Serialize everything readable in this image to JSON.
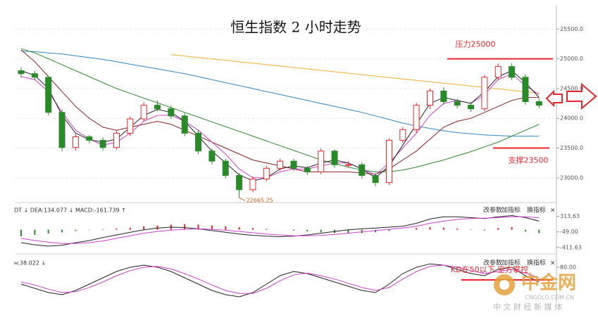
{
  "chart_data": [
    {
      "type": "candlestick",
      "title": "恒生指数 2 小时走势",
      "open": [
        24800,
        24750,
        24690,
        24100,
        23510,
        23690,
        23630,
        23510,
        23750,
        23990,
        24220,
        24160,
        24040,
        23750,
        23450,
        23280,
        23040,
        22800,
        22980,
        23160,
        23280,
        23160,
        23100,
        23450,
        23220,
        23220,
        23040,
        22920,
        23630,
        23810,
        24220,
        24460,
        24280,
        24220,
        24160,
        24690,
        24870,
        24690,
        24280
      ],
      "high": [
        24860,
        24800,
        24720,
        24150,
        23740,
        23720,
        23680,
        23790,
        24030,
        24270,
        24300,
        24210,
        24090,
        23800,
        23490,
        23320,
        23080,
        23020,
        23200,
        23320,
        23320,
        23200,
        23490,
        23480,
        23280,
        23260,
        23080,
        23660,
        23850,
        24260,
        24500,
        24520,
        24330,
        24280,
        24730,
        24920,
        24930,
        24740,
        24330
      ],
      "low": [
        24690,
        24640,
        24050,
        23450,
        23460,
        23580,
        23460,
        23470,
        23700,
        23950,
        24120,
        23990,
        23700,
        23400,
        23230,
        22990,
        22665.25,
        22760,
        22940,
        23120,
        23110,
        23050,
        23060,
        23170,
        23170,
        22990,
        22860,
        22880,
        23590,
        23760,
        24160,
        24230,
        24170,
        24110,
        24120,
        24640,
        24640,
        24230,
        24170
      ],
      "close": [
        24750,
        24690,
        24100,
        23510,
        23690,
        23630,
        23510,
        23750,
        23990,
        24220,
        24160,
        24040,
        23750,
        23450,
        23280,
        23040,
        22800,
        22980,
        23160,
        23280,
        23160,
        23100,
        23450,
        23220,
        23220,
        23040,
        22920,
        23630,
        23810,
        24220,
        24460,
        24280,
        24220,
        24160,
        24690,
        24870,
        24690,
        24280,
        24220
      ],
      "up_color": "#e8262b",
      "down_color": "#2a8a2a",
      "series": [
        {
          "color": "#f0b030",
          "values": [
            null,
            null,
            null,
            null,
            null,
            null,
            null,
            null,
            null,
            null,
            null,
            25070,
            25046,
            25022,
            24998,
            24974,
            24950,
            24926,
            24902,
            24878,
            24854,
            24830,
            24806,
            24782,
            24758,
            24734,
            24710,
            24686,
            24662,
            24638,
            24614,
            24590,
            24566,
            24542,
            24518,
            24494,
            24470,
            24446,
            24422
          ]
        },
        {
          "color": "#2f86c8",
          "values": [
            25130,
            25120,
            25100,
            25080,
            25050,
            25020,
            24990,
            24950,
            24910,
            24870,
            24830,
            24790,
            24750,
            24700,
            24650,
            24600,
            24550,
            24500,
            24450,
            24400,
            24350,
            24300,
            24250,
            24200,
            24150,
            24100,
            24040,
            23980,
            23920,
            23870,
            23830,
            23790,
            23760,
            23740,
            23720,
            23710,
            23700,
            23700,
            23700
          ]
        },
        {
          "color": "#2e8b2e",
          "values": [
            25170,
            25100,
            25000,
            24900,
            24800,
            24700,
            24600,
            24500,
            24420,
            24340,
            24260,
            24180,
            24100,
            24020,
            23940,
            23860,
            23780,
            23700,
            23620,
            23540,
            23460,
            23380,
            23300,
            23240,
            23180,
            23130,
            23100,
            23100,
            23130,
            23180,
            23240,
            23300,
            23370,
            23440,
            23520,
            23600,
            23700,
            23800,
            23900
          ]
        },
        {
          "color": "#8b2020",
          "values": [
            25150,
            24950,
            24700,
            24450,
            24200,
            24000,
            23850,
            23800,
            23850,
            23900,
            23950,
            23900,
            23800,
            23700,
            23600,
            23500,
            23400,
            23300,
            23250,
            23200,
            23150,
            23100,
            23100,
            23100,
            23100,
            23080,
            23060,
            23150,
            23300,
            23450,
            23650,
            23850,
            23950,
            24000,
            24100,
            24200,
            24300,
            24350,
            24350
          ]
        },
        {
          "color": "#d040d0",
          "values": [
            24700,
            24650,
            24450,
            24100,
            23800,
            23650,
            23550,
            23600,
            23750,
            23950,
            24050,
            24050,
            23950,
            23800,
            23600,
            23400,
            23150,
            23000,
            23000,
            23100,
            23150,
            23150,
            23200,
            23250,
            23250,
            23150,
            23050,
            23250,
            23500,
            23750,
            24050,
            24250,
            24300,
            24250,
            24400,
            24650,
            24750,
            24550,
            24400
          ]
        },
        {
          "color": "#222222",
          "values": [
            24800,
            24720,
            24500,
            24050,
            23750,
            23640,
            23600,
            23650,
            23850,
            24050,
            24150,
            24100,
            23950,
            23700,
            23450,
            23250,
            23050,
            22950,
            23000,
            23150,
            23200,
            23170,
            23250,
            23300,
            23250,
            23150,
            23000,
            23200,
            23550,
            23900,
            24250,
            24350,
            24300,
            24250,
            24450,
            24700,
            24800,
            24600,
            24350
          ]
        }
      ],
      "reference_lines": [
        {
          "label": "压力25000",
          "value": 25000,
          "color": "#e8262b"
        },
        {
          "label": "支撑23500",
          "value": 23500,
          "color": "#e8262b"
        }
      ],
      "ylim": [
        22620,
        25870
      ],
      "yticks": [
        {
          "value": 23000,
          "label": "23000.0"
        },
        {
          "value": 23500,
          "label": "23500.0"
        },
        {
          "value": 24000,
          "label": "24000.0"
        },
        {
          "value": 24500,
          "label": "24500.0"
        },
        {
          "value": 25000,
          "label": "25000.0"
        },
        {
          "value": 25500,
          "label": "25500.0"
        }
      ],
      "grid": true
    },
    {
      "type": "macd",
      "header": "DT ↓ DEA:134.077 ↓ MACD:-161.739 ↑",
      "buttons": [
        "改参数",
        "加指标",
        "换指标",
        "×"
      ],
      "histogram": [
        -150,
        -120,
        -90,
        -60,
        -30,
        -10,
        10,
        30,
        50,
        80,
        100,
        120,
        130,
        120,
        100,
        80,
        60,
        40,
        20,
        0,
        -20,
        -40,
        -60,
        -80,
        -90,
        -80,
        -60,
        -30,
        0,
        40,
        60,
        50,
        30,
        10,
        -20,
        40,
        60,
        -40,
        -80
      ],
      "up_color": "#e8262b",
      "down_color": "#2a8a2a",
      "series": [
        {
          "color": "#222222",
          "values": [
            -300,
            -350,
            -380,
            -360,
            -300,
            -250,
            -180,
            -120,
            -60,
            0,
            40,
            60,
            50,
            20,
            -20,
            -60,
            -100,
            -130,
            -150,
            -160,
            -150,
            -120,
            -80,
            -40,
            0,
            20,
            40,
            60,
            80,
            150,
            250,
            300,
            300,
            280,
            260,
            300,
            330,
            280,
            200
          ]
        },
        {
          "color": "#d040d0",
          "values": [
            -200,
            -250,
            -290,
            -320,
            -320,
            -300,
            -260,
            -200,
            -140,
            -80,
            -40,
            -10,
            10,
            20,
            10,
            -10,
            -40,
            -70,
            -100,
            -120,
            -140,
            -140,
            -130,
            -110,
            -80,
            -50,
            -20,
            10,
            40,
            80,
            150,
            200,
            240,
            260,
            270,
            280,
            300,
            300,
            280
          ]
        }
      ],
      "ylim": [
        -512,
        550
      ],
      "yticks": [
        -411.63,
        {
          "value": -49,
          "label": "-49.00"
        },
        313.63
      ]
    },
    {
      "type": "line",
      "header": "ʜ:38.022 ↓",
      "buttons": [
        "改参数",
        "加指标",
        "换指标",
        "×"
      ],
      "series": [
        {
          "color": "#222222",
          "values": [
            40,
            30,
            20,
            15,
            25,
            40,
            55,
            70,
            80,
            85,
            80,
            70,
            55,
            40,
            25,
            15,
            10,
            20,
            40,
            60,
            70,
            65,
            55,
            45,
            35,
            25,
            20,
            40,
            65,
            80,
            88,
            85,
            75,
            65,
            60,
            75,
            80,
            60,
            45
          ]
        },
        {
          "color": "#d040d0",
          "values": [
            45,
            38,
            28,
            20,
            22,
            32,
            45,
            60,
            72,
            80,
            82,
            76,
            65,
            52,
            38,
            25,
            18,
            18,
            30,
            48,
            62,
            66,
            60,
            52,
            42,
            32,
            25,
            32,
            52,
            70,
            82,
            85,
            80,
            72,
            65,
            70,
            75,
            66,
            55
          ]
        }
      ],
      "reference_lines": [
        {
          "label": "KD在50以下 空方掌控",
          "value": 50,
          "color": "#e8262b"
        }
      ],
      "ylim": [
        0,
        100
      ],
      "yticks": [
        {
          "value": 80,
          "label": "80.00"
        }
      ]
    }
  ],
  "watermark": {
    "name": "中金网",
    "url": "CNGOLD.COM.CN",
    "tagline": "中 文 财 经 新 媒 体"
  }
}
